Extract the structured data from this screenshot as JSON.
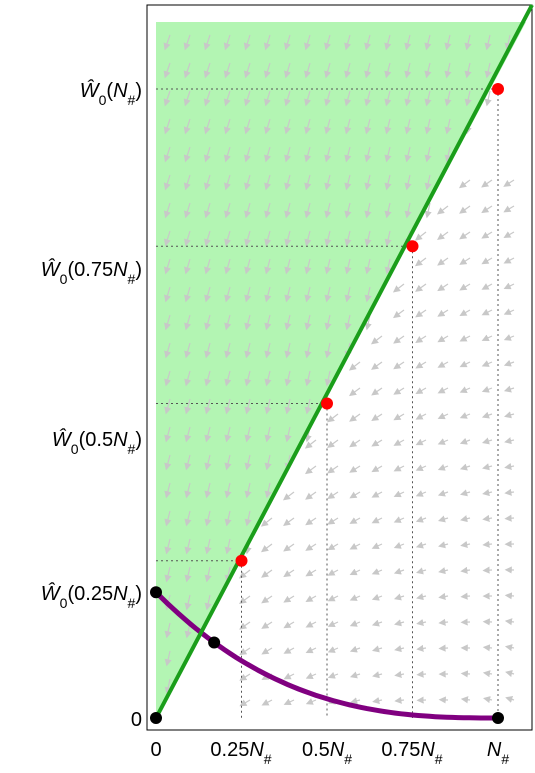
{
  "chart_data": {
    "type": "diagram",
    "x_ticks": [
      {
        "value": 0,
        "prefix": "0",
        "sym": "",
        "sub": ""
      },
      {
        "value": 0.25,
        "prefix": "0.25",
        "sym": "N",
        "sub": "#"
      },
      {
        "value": 0.5,
        "prefix": "0.5",
        "sym": "N",
        "sub": "#"
      },
      {
        "value": 0.75,
        "prefix": "0.75",
        "sym": "N",
        "sub": "#"
      },
      {
        "value": 1,
        "prefix": "",
        "sym": "N",
        "sub": "#"
      }
    ],
    "y_ticks": [
      {
        "value": 0,
        "text": "0",
        "sym": "",
        "sub": ""
      },
      {
        "value": 0.25,
        "text": "0.25",
        "sym": "N",
        "sub": "#"
      },
      {
        "value": 0.5,
        "text": "0.5",
        "sym": "N",
        "sub": "#"
      },
      {
        "value": 0.75,
        "text": "0.75",
        "sym": "N",
        "sub": "#"
      },
      {
        "value": 1,
        "text": "",
        "sym": "N",
        "sub": "#"
      }
    ],
    "y_tick_symbol": "Ŵ",
    "y_tick_index": "0",
    "xlim": [
      0,
      1.07
    ],
    "ylim": [
      0,
      1
    ],
    "red_points": [
      {
        "x": 0.25,
        "y": 0.25
      },
      {
        "x": 0.5,
        "y": 0.5
      },
      {
        "x": 0.75,
        "y": 0.75
      },
      {
        "x": 1.0,
        "y": 1.0
      }
    ],
    "black_points": [
      {
        "x": 0.0,
        "y": 0.0
      },
      {
        "x": 0.0,
        "y": 0.2
      },
      {
        "x": 0.17,
        "y": 0.12
      },
      {
        "x": 1.0,
        "y": 0.0
      }
    ],
    "colors": {
      "region": "#b3f5b3",
      "boundary_line": "#1a9e1a",
      "curve": "#800080",
      "red_point": "#ff0000",
      "black_point": "#000000",
      "stream": "#c8c8c8",
      "guide": "#555555"
    }
  }
}
